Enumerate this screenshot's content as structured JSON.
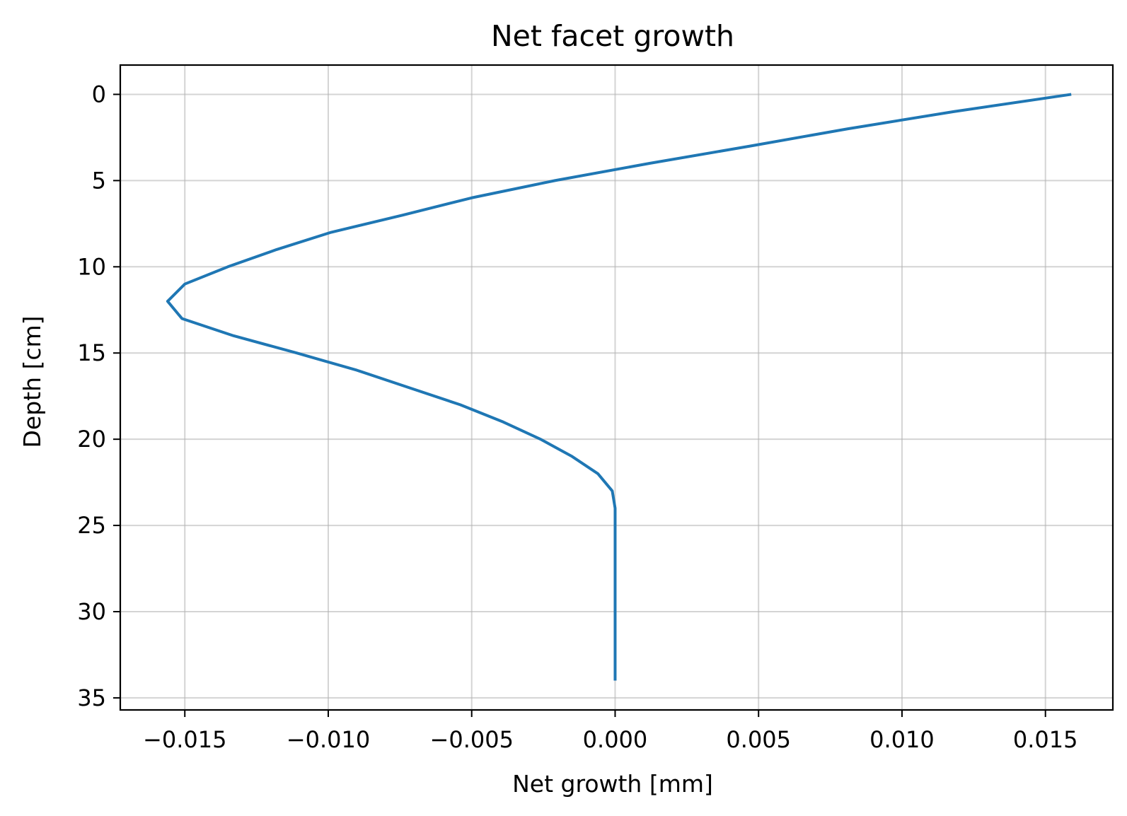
{
  "chart_data": {
    "type": "line",
    "title": "Net facet growth",
    "xlabel": "Net growth [mm]",
    "ylabel": "Depth [cm]",
    "xlim": [
      -0.01725,
      0.01735
    ],
    "ylim": [
      35.7,
      -1.7
    ],
    "y_inverted": true,
    "grid": true,
    "xticks": [
      -0.015,
      -0.01,
      -0.005,
      0.0,
      0.005,
      0.01,
      0.015
    ],
    "xtick_labels": [
      "−0.015",
      "−0.010",
      "−0.005",
      "0.000",
      "0.005",
      "0.010",
      "0.015"
    ],
    "yticks": [
      0,
      5,
      10,
      15,
      20,
      25,
      30,
      35
    ],
    "ytick_labels": [
      "0",
      "5",
      "10",
      "15",
      "20",
      "25",
      "30",
      "35"
    ],
    "series": [
      {
        "color": "#1f77b4",
        "x": [
          0.0159,
          0.0118,
          0.0081,
          0.0047,
          0.0012,
          -0.0021,
          -0.005,
          -0.0074,
          -0.0099,
          -0.0118,
          -0.0135,
          -0.015,
          -0.0156,
          -0.0151,
          -0.0133,
          -0.0111,
          -0.009,
          -0.0072,
          -0.0054,
          -0.0039,
          -0.0026,
          -0.0015,
          -0.0006,
          -0.0001,
          0.0,
          0.0,
          0.0,
          0.0,
          0.0,
          0.0,
          0.0,
          0.0,
          0.0,
          0.0,
          0.0
        ],
        "y": [
          0,
          1,
          2,
          3,
          4,
          5,
          6,
          7,
          8,
          9,
          10,
          11,
          12,
          13,
          14,
          15,
          16,
          17,
          18,
          19,
          20,
          21,
          22,
          23,
          24,
          25,
          26,
          27,
          28,
          29,
          30,
          31,
          32,
          33,
          34
        ]
      }
    ]
  },
  "colors": {
    "line": "#1f77b4",
    "grid": "#b0b0b0",
    "axes": "#000000"
  }
}
